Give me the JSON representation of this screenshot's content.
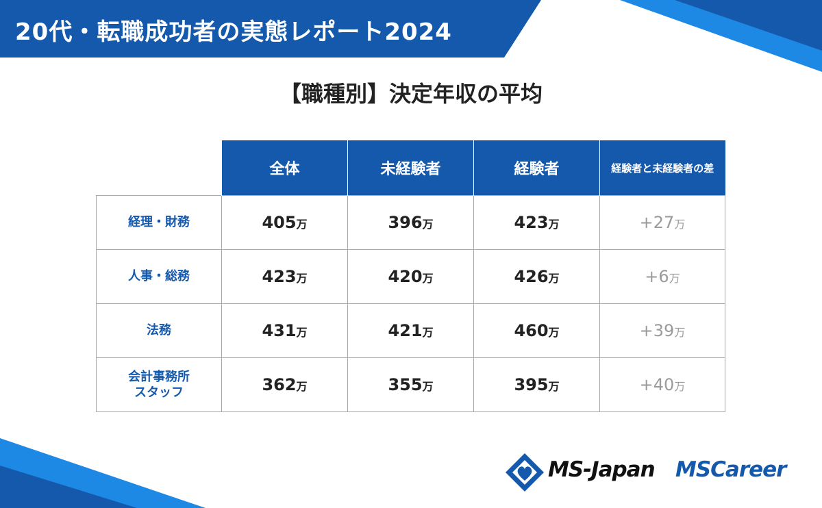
{
  "header": {
    "title": "20代・転職成功者の実態レポート2024"
  },
  "chart_data": {
    "type": "table",
    "title": "【職種別】決定年収の平均",
    "unit": "万",
    "columns": [
      "全体",
      "未経験者",
      "経験者",
      "経験者と未経験者の差"
    ],
    "rows": [
      {
        "label": "経理・財務",
        "values": [
          "405",
          "396",
          "423",
          "+27"
        ]
      },
      {
        "label": "人事・総務",
        "values": [
          "423",
          "420",
          "426",
          "+6"
        ]
      },
      {
        "label": "法務",
        "values": [
          "431",
          "421",
          "460",
          "+39"
        ]
      },
      {
        "label": "会計事務所\nスタッフ",
        "values": [
          "362",
          "355",
          "395",
          "+40"
        ]
      }
    ]
  },
  "footer": {
    "brand1": "MS-Japan",
    "brand2": "MSCareer"
  },
  "colors": {
    "primary": "#1559ad",
    "accent": "#1e88e5",
    "diff_text": "#9a9a9a"
  }
}
